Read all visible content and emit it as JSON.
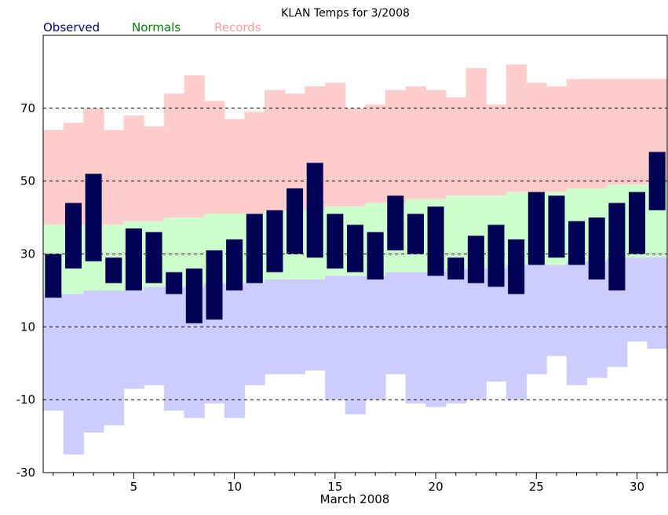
{
  "chart_data": {
    "type": "bar",
    "title": "KLAN Temps for 3/2008",
    "xlabel": "March 2008",
    "ylabel": "",
    "xlim": [
      0.5,
      31.5
    ],
    "ylim": [
      -30,
      90
    ],
    "yticks": [
      -30,
      -10,
      10,
      30,
      50,
      70
    ],
    "xticks": [
      5,
      10,
      15,
      20,
      25,
      30
    ],
    "grid": "dashed horizontal at 70, 50, 30, 10, -10",
    "legend": {
      "placement": "top-left",
      "entries": [
        "Observed",
        "Normals",
        "Records"
      ]
    },
    "colors": {
      "observed": "#000055",
      "normals": "#ccffcc",
      "records": "#ffcccc",
      "record_low": "#ccccff",
      "observed_legend": "#000080",
      "normals_legend": "#008000",
      "records_legend": "#ff9999"
    },
    "days": [
      1,
      2,
      3,
      4,
      5,
      6,
      7,
      8,
      9,
      10,
      11,
      12,
      13,
      14,
      15,
      16,
      17,
      18,
      19,
      20,
      21,
      22,
      23,
      24,
      25,
      26,
      27,
      28,
      29,
      30,
      31
    ],
    "series": [
      {
        "name": "Records",
        "role": "record_high",
        "values": [
          64,
          66,
          70,
          64,
          68,
          65,
          74,
          79,
          72,
          67,
          69,
          75,
          74,
          76,
          77,
          70,
          71,
          75,
          76,
          75,
          73,
          81,
          71,
          82,
          77,
          76,
          78,
          78,
          78,
          78,
          78
        ]
      },
      {
        "name": "Normals",
        "role": "normal_high",
        "values": [
          38,
          38,
          38,
          38,
          39,
          39,
          40,
          40,
          41,
          41,
          41,
          42,
          42,
          42,
          43,
          43,
          44,
          44,
          45,
          45,
          46,
          46,
          46,
          47,
          47,
          47,
          48,
          48,
          49,
          49,
          50
        ]
      },
      {
        "name": "Normals",
        "role": "normal_low",
        "values": [
          19,
          19,
          20,
          20,
          20,
          21,
          21,
          21,
          22,
          22,
          22,
          23,
          23,
          23,
          24,
          24,
          24,
          25,
          25,
          25,
          26,
          26,
          26,
          27,
          27,
          27,
          28,
          28,
          29,
          29,
          29
        ]
      },
      {
        "name": "Records",
        "role": "record_low",
        "values": [
          -13,
          -25,
          -19,
          -17,
          -7,
          -6,
          -13,
          -15,
          -11,
          -15,
          -6,
          -3,
          -3,
          -2,
          -10,
          -14,
          -10,
          -3,
          -11,
          -12,
          -11,
          -10,
          -5,
          -10,
          -3,
          2,
          -6,
          -4,
          -1,
          6,
          4
        ]
      },
      {
        "name": "Observed",
        "role": "observed_high",
        "values": [
          30,
          44,
          52,
          29,
          37,
          36,
          25,
          26,
          31,
          34,
          41,
          42,
          48,
          55,
          41,
          38,
          36,
          46,
          41,
          43,
          29,
          35,
          38,
          34,
          47,
          46,
          39,
          40,
          44,
          47,
          58
        ]
      },
      {
        "name": "Observed",
        "role": "observed_low",
        "values": [
          18,
          26,
          28,
          22,
          20,
          22,
          19,
          11,
          12,
          20,
          22,
          25,
          30,
          29,
          26,
          25,
          23,
          31,
          30,
          24,
          23,
          22,
          21,
          19,
          27,
          29,
          27,
          23,
          20,
          30,
          42
        ]
      }
    ]
  }
}
